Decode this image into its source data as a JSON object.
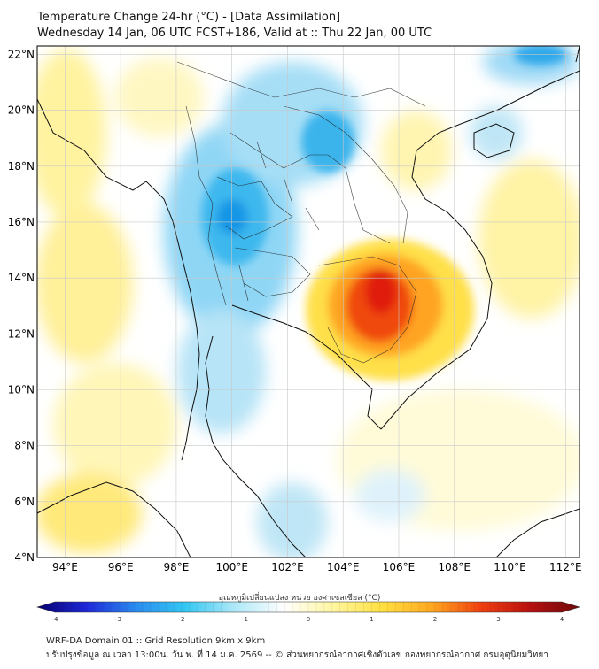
{
  "header": {
    "title_line1": "Temperature Change 24-hr (°C) - [Data Assimilation]",
    "title_line2": "Wednesday 14 Jan, 06 UTC FCST+186, Valid at :: Thu 22 Jan, 00 UTC"
  },
  "map": {
    "lat_labels": [
      "4°N",
      "6°N",
      "8°N",
      "10°N",
      "12°N",
      "14°N",
      "16°N",
      "18°N",
      "20°N",
      "22°N"
    ],
    "lat_values": [
      4,
      6,
      8,
      10,
      12,
      14,
      16,
      18,
      20,
      22
    ],
    "lon_labels": [
      "94°E",
      "96°E",
      "98°E",
      "100°E",
      "102°E",
      "104°E",
      "106°E",
      "108°E",
      "110°E",
      "112°E"
    ],
    "lon_values": [
      94,
      96,
      98,
      100,
      102,
      104,
      106,
      108,
      110,
      112
    ],
    "extent": {
      "lon": [
        93,
        112.5
      ],
      "lat": [
        4,
        22.3
      ]
    },
    "colors": {
      "strong_cool": "#0a8fe6",
      "cool": "#36b6ee",
      "light_cool": "#8fd6f5",
      "neutral": "#ffffff",
      "light_warm": "#fff7b0",
      "warm": "#ffe24a",
      "hot": "#ff8a10",
      "very_hot": "#e8230a",
      "grid": "#c8c8c8"
    }
  },
  "colorbar": {
    "label": "อุณหภูมิเปลี่ยนแปลง หน่วย องศาเซลเซียส (°C)",
    "tick_labels": [
      "-4",
      "-3",
      "-2",
      "-1",
      "0",
      "1",
      "2",
      "3",
      "4"
    ],
    "tick_values": [
      -4,
      -3,
      -2,
      -1,
      0,
      1,
      2,
      3,
      4
    ],
    "range": [
      -4,
      4
    ],
    "stops": [
      "#08006e",
      "#1e28d8",
      "#2a8cf0",
      "#33c7f2",
      "#aee8f8",
      "#ffffff",
      "#fff6a0",
      "#ffe040",
      "#ffa820",
      "#f04010",
      "#b81010",
      "#6e0a0a"
    ]
  },
  "footer": {
    "line1": "WRF-DA Domain 01 :: Grid Resolution 9km x 9km",
    "line2": "ปรับปรุงข้อมูล ณ เวลา 13:00น. วัน พ. ที่ 14 ม.ค. 2569 -- © ส่วนพยากรณ์อากาศเชิงตัวเลข กองพยากรณ์อากาศ กรมอุตุนิยมวิทยา"
  }
}
